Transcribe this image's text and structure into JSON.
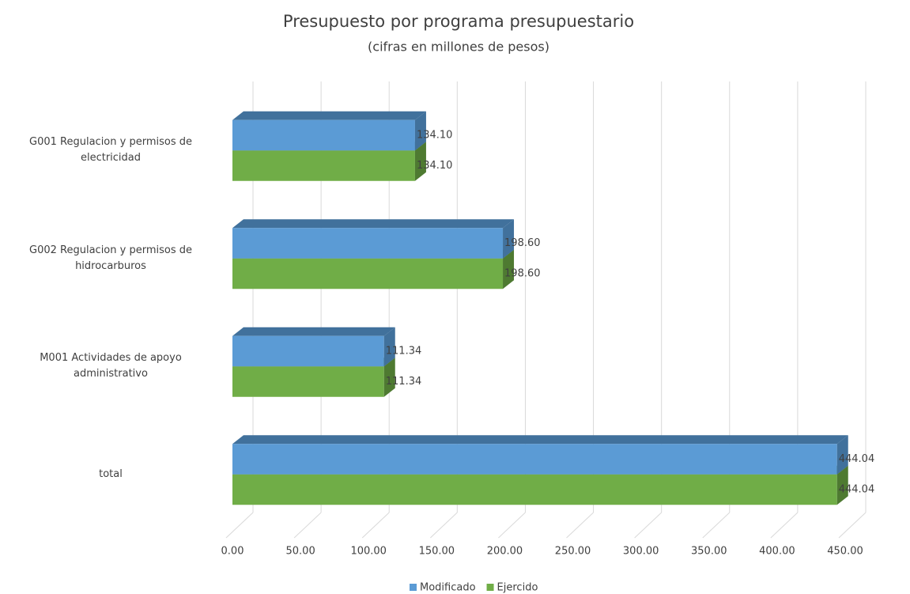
{
  "chart_data": {
    "type": "bar",
    "orientation": "horizontal",
    "title": "Presupuesto por programa presupuestario",
    "subtitle": "(cifras en millones de pesos)",
    "categories": [
      "G001 Regulacion y permisos de electricidad",
      "G002 Regulacion y permisos de hidrocarburos",
      "M001 Actividades de apoyo administrativo",
      "total"
    ],
    "series": [
      {
        "name": "Modificado",
        "color": "#5b9bd5",
        "side_color": "#41719c",
        "values": [
          134.1,
          198.6,
          111.34,
          444.04
        ],
        "value_labels": [
          "134.10",
          "198.60",
          "111.34",
          "444.04"
        ]
      },
      {
        "name": "Ejercido",
        "color": "#70ad47",
        "side_color": "#4e7a31",
        "values": [
          134.1,
          198.6,
          111.34,
          444.04
        ],
        "value_labels": [
          "134.10",
          "198.60",
          "111.34",
          "444.04"
        ]
      }
    ],
    "xlim": [
      0,
      450
    ],
    "xticks": [
      {
        "value": 0,
        "label": "0.00"
      },
      {
        "value": 50,
        "label": "50.00"
      },
      {
        "value": 100,
        "label": "100.00"
      },
      {
        "value": 150,
        "label": "150.00"
      },
      {
        "value": 200,
        "label": "200.00"
      },
      {
        "value": 250,
        "label": "250.00"
      },
      {
        "value": 300,
        "label": "300.00"
      },
      {
        "value": 350,
        "label": "350.00"
      },
      {
        "value": 400,
        "label": "400.00"
      },
      {
        "value": 450,
        "label": "450.00"
      }
    ],
    "grid": true,
    "legend": "bottom"
  }
}
